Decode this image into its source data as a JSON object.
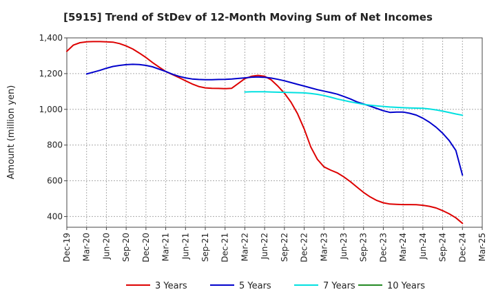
{
  "chart_data": {
    "type": "line",
    "title": "[5915]  Trend of StDev of 12-Month Moving Sum of Net Incomes",
    "ylabel": "Amount (million yen)",
    "xlabel": "",
    "ylim": [
      340,
      1400
    ],
    "yticks": [
      400,
      600,
      800,
      1000,
      1200,
      1400
    ],
    "ytick_labels": [
      "400",
      "600",
      "800",
      "1,000",
      "1,200",
      "1,400"
    ],
    "xtick_labels": [
      "Dec-19",
      "Mar-20",
      "Jun-20",
      "Sep-20",
      "Dec-20",
      "Mar-21",
      "Jun-21",
      "Sep-21",
      "Dec-21",
      "Mar-22",
      "Jun-22",
      "Sep-22",
      "Dec-22",
      "Mar-23",
      "Jun-23",
      "Sep-23",
      "Dec-23",
      "Mar-24",
      "Jun-24",
      "Sep-24",
      "Dec-24",
      "Mar-25"
    ],
    "grid": true,
    "legend_position": "bottom",
    "series": [
      {
        "name": "3 Years",
        "color": "#dd0000",
        "points": [
          [
            "Dec-19",
            1325
          ],
          [
            "Jan-20",
            1360
          ],
          [
            "Feb-20",
            1373
          ],
          [
            "Mar-20",
            1378
          ],
          [
            "Apr-20",
            1379
          ],
          [
            "May-20",
            1379
          ],
          [
            "Jun-20",
            1378
          ],
          [
            "Jul-20",
            1376
          ],
          [
            "Aug-20",
            1368
          ],
          [
            "Sep-20",
            1355
          ],
          [
            "Oct-20",
            1338
          ],
          [
            "Nov-20",
            1315
          ],
          [
            "Dec-20",
            1290
          ],
          [
            "Jan-21",
            1262
          ],
          [
            "Feb-21",
            1236
          ],
          [
            "Mar-21",
            1212
          ],
          [
            "Apr-21",
            1195
          ],
          [
            "May-21",
            1178
          ],
          [
            "Jun-21",
            1160
          ],
          [
            "Jul-21",
            1142
          ],
          [
            "Aug-21",
            1128
          ],
          [
            "Sep-21",
            1120
          ],
          [
            "Oct-21",
            1118
          ],
          [
            "Nov-21",
            1117
          ],
          [
            "Dec-21",
            1116
          ],
          [
            "Jan-22",
            1118
          ],
          [
            "Feb-22",
            1145
          ],
          [
            "Mar-22",
            1172
          ],
          [
            "Apr-22",
            1185
          ],
          [
            "May-22",
            1190
          ],
          [
            "Jun-22",
            1185
          ],
          [
            "Jul-22",
            1165
          ],
          [
            "Aug-22",
            1130
          ],
          [
            "Sep-22",
            1090
          ],
          [
            "Oct-22",
            1040
          ],
          [
            "Nov-22",
            975
          ],
          [
            "Dec-22",
            890
          ],
          [
            "Jan-23",
            790
          ],
          [
            "Feb-23",
            720
          ],
          [
            "Mar-23",
            678
          ],
          [
            "Apr-23",
            660
          ],
          [
            "May-23",
            645
          ],
          [
            "Jun-23",
            622
          ],
          [
            "Jul-23",
            595
          ],
          [
            "Aug-23",
            565
          ],
          [
            "Sep-23",
            535
          ],
          [
            "Oct-23",
            510
          ],
          [
            "Nov-23",
            490
          ],
          [
            "Dec-23",
            477
          ],
          [
            "Jan-24",
            470
          ],
          [
            "Feb-24",
            468
          ],
          [
            "Mar-24",
            467
          ],
          [
            "Apr-24",
            467
          ],
          [
            "May-24",
            466
          ],
          [
            "Jun-24",
            463
          ],
          [
            "Jul-24",
            457
          ],
          [
            "Aug-24",
            448
          ],
          [
            "Sep-24",
            433
          ],
          [
            "Oct-24",
            415
          ],
          [
            "Nov-24",
            393
          ],
          [
            "Dec-24",
            362
          ]
        ]
      },
      {
        "name": "5 Years",
        "color": "#0000cc",
        "points": [
          [
            "Mar-20",
            1198
          ],
          [
            "Apr-20",
            1208
          ],
          [
            "May-20",
            1218
          ],
          [
            "Jun-20",
            1230
          ],
          [
            "Jul-20",
            1240
          ],
          [
            "Aug-20",
            1246
          ],
          [
            "Sep-20",
            1250
          ],
          [
            "Oct-20",
            1252
          ],
          [
            "Nov-20",
            1251
          ],
          [
            "Dec-20",
            1246
          ],
          [
            "Jan-21",
            1238
          ],
          [
            "Feb-21",
            1225
          ],
          [
            "Mar-21",
            1212
          ],
          [
            "Apr-21",
            1197
          ],
          [
            "May-21",
            1185
          ],
          [
            "Jun-21",
            1176
          ],
          [
            "Jul-21",
            1170
          ],
          [
            "Aug-21",
            1167
          ],
          [
            "Sep-21",
            1166
          ],
          [
            "Oct-21",
            1166
          ],
          [
            "Nov-21",
            1167
          ],
          [
            "Dec-21",
            1168
          ],
          [
            "Jan-22",
            1170
          ],
          [
            "Feb-22",
            1173
          ],
          [
            "Mar-22",
            1176
          ],
          [
            "Apr-22",
            1180
          ],
          [
            "May-22",
            1181
          ],
          [
            "Jun-22",
            1179
          ],
          [
            "Jul-22",
            1175
          ],
          [
            "Aug-22",
            1168
          ],
          [
            "Sep-22",
            1160
          ],
          [
            "Oct-22",
            1150
          ],
          [
            "Nov-22",
            1140
          ],
          [
            "Dec-22",
            1130
          ],
          [
            "Jan-23",
            1120
          ],
          [
            "Feb-23",
            1110
          ],
          [
            "Mar-23",
            1102
          ],
          [
            "Apr-23",
            1094
          ],
          [
            "May-23",
            1085
          ],
          [
            "Jun-23",
            1072
          ],
          [
            "Jul-23",
            1058
          ],
          [
            "Aug-23",
            1042
          ],
          [
            "Sep-23",
            1030
          ],
          [
            "Oct-23",
            1018
          ],
          [
            "Nov-23",
            1005
          ],
          [
            "Dec-23",
            992
          ],
          [
            "Jan-24",
            983
          ],
          [
            "Feb-24",
            985
          ],
          [
            "Mar-24",
            985
          ],
          [
            "Apr-24",
            978
          ],
          [
            "May-24",
            968
          ],
          [
            "Jun-24",
            950
          ],
          [
            "Jul-24",
            928
          ],
          [
            "Aug-24",
            900
          ],
          [
            "Sep-24",
            866
          ],
          [
            "Oct-24",
            825
          ],
          [
            "Nov-24",
            770
          ],
          [
            "Dec-24",
            632
          ]
        ]
      },
      {
        "name": "7 Years",
        "color": "#00e0e0",
        "points": [
          [
            "Mar-22",
            1097
          ],
          [
            "Apr-22",
            1098
          ],
          [
            "May-22",
            1098
          ],
          [
            "Jun-22",
            1098
          ],
          [
            "Jul-22",
            1097
          ],
          [
            "Aug-22",
            1096
          ],
          [
            "Sep-22",
            1095
          ],
          [
            "Oct-22",
            1094
          ],
          [
            "Nov-22",
            1093
          ],
          [
            "Dec-22",
            1092
          ],
          [
            "Jan-23",
            1089
          ],
          [
            "Feb-23",
            1084
          ],
          [
            "Mar-23",
            1077
          ],
          [
            "Apr-23",
            1068
          ],
          [
            "May-23",
            1058
          ],
          [
            "Jun-23",
            1050
          ],
          [
            "Jul-23",
            1042
          ],
          [
            "Aug-23",
            1035
          ],
          [
            "Sep-23",
            1028
          ],
          [
            "Oct-23",
            1023
          ],
          [
            "Nov-23",
            1019
          ],
          [
            "Dec-23",
            1016
          ],
          [
            "Jan-24",
            1013
          ],
          [
            "Feb-24",
            1011
          ],
          [
            "Mar-24",
            1009
          ],
          [
            "Apr-24",
            1008
          ],
          [
            "May-24",
            1007
          ],
          [
            "Jun-24",
            1006
          ],
          [
            "Jul-24",
            1002
          ],
          [
            "Aug-24",
            997
          ],
          [
            "Sep-24",
            990
          ],
          [
            "Oct-24",
            982
          ],
          [
            "Nov-24",
            974
          ],
          [
            "Dec-24",
            967
          ]
        ]
      },
      {
        "name": "10 Years",
        "color": "#228822",
        "points": []
      }
    ]
  }
}
